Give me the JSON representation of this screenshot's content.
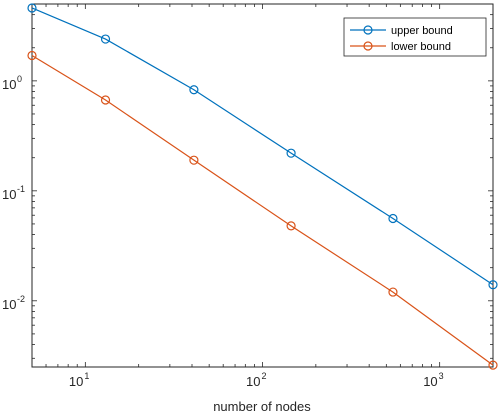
{
  "chart_data": {
    "type": "line",
    "xscale": "log",
    "yscale": "log",
    "xlabel": "number of nodes",
    "ylabel": "",
    "xlim": [
      5,
      2000
    ],
    "ylim": [
      0.0025,
      5
    ],
    "xticks": [
      {
        "value": 10,
        "base": "10",
        "exp": "1"
      },
      {
        "value": 100,
        "base": "10",
        "exp": "2"
      },
      {
        "value": 1000,
        "base": "10",
        "exp": "3"
      }
    ],
    "yticks": [
      {
        "value": 0.01,
        "base": "10",
        "exp": "-2"
      },
      {
        "value": 0.1,
        "base": "10",
        "exp": "-1"
      },
      {
        "value": 1,
        "base": "10",
        "exp": "0"
      }
    ],
    "grid": false,
    "legend_position": "top-right",
    "series": [
      {
        "name": "upper bound",
        "color": "#0072BD",
        "marker": "circle",
        "x": [
          5,
          13,
          41,
          145,
          545,
          2000
        ],
        "y": [
          4.6,
          2.4,
          0.83,
          0.22,
          0.056,
          0.014
        ]
      },
      {
        "name": "lower bound",
        "color": "#D95319",
        "marker": "circle",
        "x": [
          5,
          13,
          41,
          145,
          545,
          2000
        ],
        "y": [
          1.7,
          0.67,
          0.19,
          0.048,
          0.012,
          0.0026
        ]
      }
    ]
  }
}
